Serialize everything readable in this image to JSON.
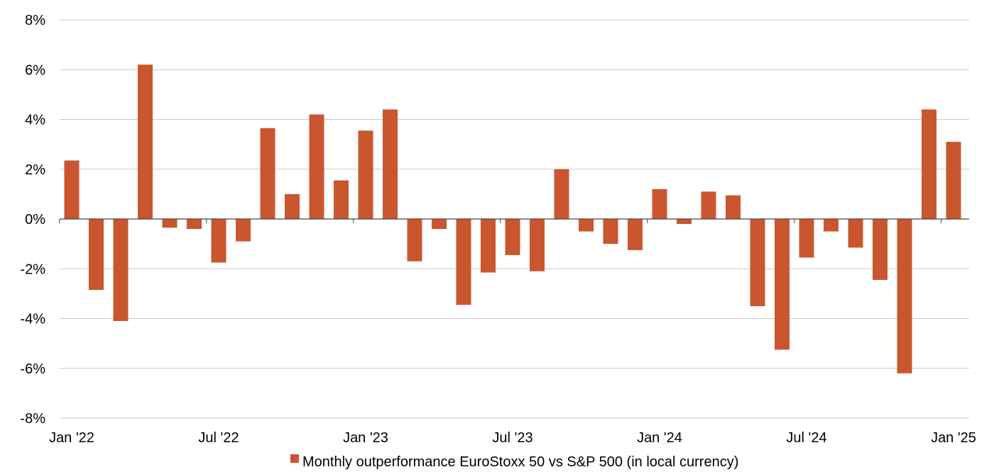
{
  "chart_data": {
    "type": "bar",
    "title": "",
    "xlabel": "",
    "ylabel": "",
    "ylim": [
      -8,
      8
    ],
    "y_ticks": [
      "8%",
      "6%",
      "4%",
      "2%",
      "0%",
      "-2%",
      "-4%",
      "-6%",
      "-8%"
    ],
    "y_tick_values": [
      8,
      6,
      4,
      2,
      0,
      -2,
      -4,
      -6,
      -8
    ],
    "x_tick_labels": [
      "Jan '22",
      "Jul '22",
      "Jan '23",
      "Jul '23",
      "Jan '24",
      "Jul '24",
      "Jan '25"
    ],
    "x_tick_month_index": [
      0,
      6,
      12,
      18,
      24,
      30,
      36
    ],
    "categories": [
      "Jan '22",
      "Feb '22",
      "Mar '22",
      "Apr '22",
      "May '22",
      "Jun '22",
      "Jul '22",
      "Aug '22",
      "Sep '22",
      "Oct '22",
      "Nov '22",
      "Dec '22",
      "Jan '23",
      "Feb '23",
      "Mar '23",
      "Apr '23",
      "May '23",
      "Jun '23",
      "Jul '23",
      "Aug '23",
      "Sep '23",
      "Oct '23",
      "Nov '23",
      "Dec '23",
      "Jan '24",
      "Feb '24",
      "Mar '24",
      "Apr '24",
      "May '24",
      "Jun '24",
      "Jul '24",
      "Aug '24",
      "Sep '24",
      "Oct '24",
      "Nov '24",
      "Dec '24",
      "Jan '25"
    ],
    "series": [
      {
        "name": "Monthly outperformance EuroStoxx 50 vs S&P 500 (in local currency)",
        "color": "#c9562f",
        "values": [
          2.35,
          -2.85,
          -4.1,
          6.2,
          -0.35,
          -0.4,
          -1.75,
          -0.9,
          3.65,
          1.0,
          4.2,
          1.55,
          3.55,
          4.4,
          -1.7,
          -0.4,
          -3.45,
          -2.15,
          -1.45,
          -2.1,
          2.0,
          -0.5,
          -1.0,
          -1.25,
          1.2,
          -0.2,
          1.1,
          0.95,
          -3.5,
          -5.25,
          -1.55,
          -0.5,
          -1.15,
          -2.45,
          -6.2,
          4.4,
          3.1
        ]
      }
    ],
    "grid": true,
    "legend_position": "bottom-center"
  }
}
